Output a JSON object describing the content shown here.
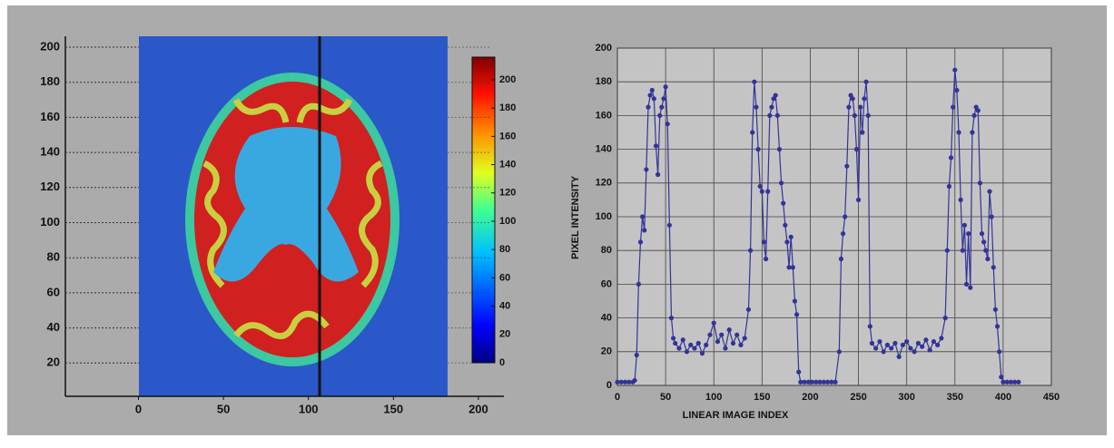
{
  "chart_data": [
    {
      "type": "heatmap",
      "xlim": [
        -43,
        215
      ],
      "ylim": [
        0,
        200
      ],
      "xticks": [
        0,
        50,
        100,
        150,
        200
      ],
      "yticks": [
        20,
        40,
        60,
        80,
        100,
        120,
        140,
        160,
        180,
        200
      ],
      "colorbar": {
        "lim": [
          0,
          216
        ],
        "ticks": [
          0,
          20,
          40,
          60,
          80,
          100,
          120,
          140,
          160,
          180,
          200
        ]
      }
    },
    {
      "type": "line",
      "xlabel": "LINEAR IMAGE INDEX",
      "ylabel": "PIXEL INTENSITY",
      "xlim": [
        0,
        450
      ],
      "ylim": [
        0,
        200
      ],
      "xticks": [
        0,
        50,
        100,
        150,
        200,
        250,
        300,
        350,
        400,
        450
      ],
      "yticks": [
        0,
        20,
        40,
        60,
        80,
        100,
        120,
        140,
        160,
        180,
        200
      ],
      "grid": true,
      "color": "#333399",
      "x": [
        0,
        4,
        8,
        12,
        16,
        18,
        20,
        22,
        24,
        26,
        28,
        30,
        32,
        34,
        36,
        38,
        40,
        42,
        44,
        46,
        48,
        50,
        52,
        54,
        56,
        58,
        60,
        64,
        68,
        72,
        76,
        80,
        84,
        88,
        92,
        96,
        100,
        104,
        108,
        112,
        116,
        120,
        124,
        128,
        132,
        136,
        138,
        140,
        142,
        144,
        146,
        148,
        150,
        152,
        154,
        156,
        158,
        160,
        162,
        164,
        166,
        168,
        170,
        172,
        174,
        176,
        178,
        180,
        182,
        184,
        186,
        188,
        190,
        194,
        198,
        202,
        206,
        210,
        214,
        218,
        222,
        226,
        230,
        232,
        234,
        236,
        238,
        240,
        242,
        244,
        246,
        248,
        250,
        252,
        254,
        256,
        258,
        260,
        262,
        264,
        268,
        272,
        276,
        280,
        284,
        288,
        292,
        296,
        300,
        304,
        308,
        312,
        316,
        320,
        324,
        328,
        332,
        336,
        340,
        342,
        344,
        346,
        348,
        350,
        352,
        354,
        356,
        358,
        360,
        362,
        364,
        366,
        368,
        370,
        372,
        374,
        376,
        378,
        380,
        382,
        384,
        386,
        388,
        390,
        392,
        394,
        396,
        398,
        400,
        404,
        408,
        412,
        416
      ],
      "values": [
        2,
        2,
        2,
        2,
        2,
        3,
        18,
        60,
        85,
        100,
        92,
        128,
        165,
        172,
        175,
        170,
        142,
        125,
        160,
        165,
        170,
        177,
        155,
        95,
        40,
        28,
        25,
        22,
        27,
        20,
        24,
        22,
        25,
        19,
        24,
        30,
        37,
        26,
        30,
        22,
        33,
        25,
        30,
        24,
        28,
        45,
        80,
        150,
        180,
        165,
        140,
        118,
        115,
        85,
        75,
        115,
        160,
        165,
        170,
        172,
        160,
        140,
        120,
        108,
        95,
        85,
        70,
        88,
        70,
        50,
        42,
        8,
        2,
        2,
        2,
        2,
        2,
        2,
        2,
        2,
        2,
        2,
        20,
        75,
        90,
        100,
        130,
        165,
        172,
        170,
        160,
        140,
        110,
        165,
        150,
        170,
        180,
        160,
        35,
        25,
        22,
        26,
        20,
        24,
        22,
        25,
        17,
        24,
        26,
        22,
        20,
        25,
        23,
        27,
        21,
        26,
        24,
        28,
        40,
        80,
        118,
        135,
        165,
        187,
        175,
        150,
        110,
        80,
        95,
        60,
        90,
        58,
        150,
        160,
        165,
        163,
        120,
        90,
        85,
        80,
        75,
        115,
        100,
        70,
        45,
        35,
        20,
        5,
        2,
        2,
        2,
        2,
        2
      ]
    }
  ]
}
